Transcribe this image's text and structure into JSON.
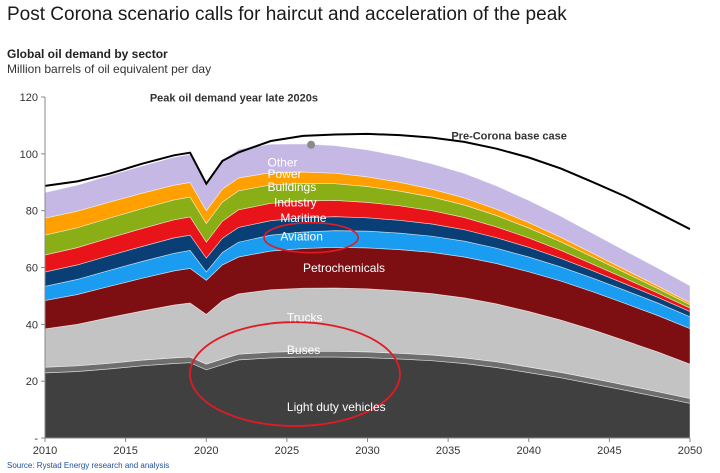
{
  "headline": "Post Corona scenario calls for haircut and acceleration of the peak",
  "source": "Source: Rystad Energy research and analysis",
  "chart_data": {
    "type": "area",
    "title": "Global oil demand by sector",
    "subtitle": "Million barrels of oil equivalent per day",
    "xlabel": "",
    "ylabel": "",
    "xlim": [
      2010,
      2050
    ],
    "ylim": [
      0,
      120
    ],
    "x_ticks": [
      2010,
      2015,
      2020,
      2025,
      2030,
      2035,
      2040,
      2045,
      2050
    ],
    "y_ticks": [
      0,
      20,
      40,
      60,
      80,
      100,
      120
    ],
    "y_tick_labels": [
      "-",
      "20",
      "40",
      "60",
      "80",
      "100",
      "120"
    ],
    "grid": false,
    "x": [
      2010,
      2012,
      2014,
      2016,
      2018,
      2019,
      2020,
      2021,
      2022,
      2024,
      2026,
      2028,
      2030,
      2032,
      2034,
      2036,
      2038,
      2040,
      2042,
      2044,
      2046,
      2048,
      2050
    ],
    "series": [
      {
        "name": "Light duty vehicles",
        "color": "#404040",
        "label_color": "#ffffff",
        "label_at": [
          2025,
          9.5
        ],
        "values": [
          22.9,
          23.4,
          24.3,
          25.4,
          26.2,
          26.5,
          24.0,
          25.8,
          27.5,
          28.2,
          28.5,
          28.5,
          28.3,
          27.8,
          27.2,
          26.2,
          24.8,
          23.0,
          21.2,
          19.0,
          16.8,
          14.5,
          12.2
        ]
      },
      {
        "name": "Buses",
        "color": "#6e6e6e",
        "label_color": "#ffffff",
        "label_at": [
          2025,
          29.5
        ],
        "values": [
          2.0,
          2.0,
          2.0,
          2.0,
          2.0,
          2.0,
          2.0,
          2.0,
          2.0,
          2.0,
          2.0,
          2.0,
          2.0,
          2.0,
          2.0,
          2.0,
          2.0,
          2.0,
          1.9,
          1.9,
          1.8,
          1.8,
          1.7
        ]
      },
      {
        "name": "Trucks",
        "color": "#c3c3c3",
        "label_color": "#ffffff",
        "label_at": [
          2025,
          41
        ]
      },
      {
        "name": "Petrochemicals",
        "color": "#7d0f12",
        "label_color": "#ffffff",
        "label_at": [
          2026,
          58.5
        ],
        "values": [
          10.0,
          10.5,
          11.0,
          11.5,
          12.0,
          12.2,
          12.0,
          12.6,
          13.0,
          13.6,
          14.0,
          14.3,
          14.4,
          14.5,
          14.5,
          14.4,
          14.2,
          14.0,
          13.7,
          13.4,
          13.1,
          12.8,
          12.5
        ]
      },
      {
        "name": "Aviation",
        "color": "#1a9cf0",
        "label_color": "#ffffff",
        "label_at": [
          2024.6,
          69.5
        ],
        "values": [
          5.0,
          5.3,
          5.6,
          5.9,
          6.2,
          6.3,
          3.0,
          4.4,
          5.2,
          5.6,
          5.8,
          5.9,
          5.9,
          5.8,
          5.7,
          5.6,
          5.4,
          5.2,
          5.0,
          4.8,
          4.6,
          4.4,
          4.2
        ]
      },
      {
        "name": "Maritime",
        "color": "#0a3f75",
        "label_color": "#ffffff",
        "label_at": [
          2024.6,
          76.0
        ],
        "values": [
          5.0,
          5.1,
          5.2,
          5.3,
          5.4,
          5.4,
          4.8,
          5.0,
          5.2,
          5.1,
          5.0,
          4.9,
          4.7,
          4.5,
          4.3,
          4.0,
          3.7,
          3.4,
          3.0,
          2.6,
          2.3,
          2.0,
          1.8
        ]
      },
      {
        "name": "Industry",
        "color": "#e8141a",
        "label_color": "#ffffff",
        "label_at": [
          2024.2,
          81.5
        ],
        "values": [
          6.0,
          6.1,
          6.2,
          6.3,
          6.4,
          6.4,
          5.6,
          6.0,
          6.2,
          6.1,
          5.9,
          5.7,
          5.4,
          5.1,
          4.7,
          4.3,
          3.8,
          3.3,
          2.8,
          2.3,
          1.9,
          1.5,
          1.2
        ]
      },
      {
        "name": "Buildings",
        "color": "#8aae16",
        "label_color": "#ffffff",
        "label_at": [
          2023.8,
          87.0
        ],
        "values": [
          7.0,
          7.0,
          7.0,
          7.0,
          7.0,
          7.0,
          6.6,
          6.7,
          6.7,
          6.5,
          6.2,
          5.9,
          5.6,
          5.2,
          4.8,
          4.4,
          4.0,
          3.5,
          3.0,
          2.5,
          2.0,
          1.6,
          1.2
        ]
      },
      {
        "name": "Power",
        "color": "#ffa000",
        "label_color": "#ffffff",
        "label_at": [
          2023.8,
          91.5
        ],
        "values": [
          6.0,
          5.8,
          5.6,
          5.4,
          5.2,
          5.1,
          4.5,
          4.6,
          4.5,
          4.3,
          4.0,
          3.7,
          3.4,
          3.1,
          2.8,
          2.5,
          2.2,
          1.9,
          1.6,
          1.3,
          1.1,
          0.9,
          0.7
        ]
      },
      {
        "name": "Other",
        "color": "#c5b8e4",
        "label_color": "#ffffff",
        "label_at": [
          2023.8,
          95.5
        ],
        "values": [
          9.0,
          9.2,
          9.4,
          9.6,
          9.8,
          9.9,
          9.8,
          10.0,
          10.1,
          10.0,
          9.9,
          9.7,
          9.5,
          9.2,
          8.9,
          8.6,
          8.2,
          7.8,
          7.4,
          7.0,
          6.6,
          6.3,
          6.0
        ]
      }
    ],
    "trucks_top": [
      38.4,
      40.0,
      42.4,
      44.7,
      46.8,
      47.5,
      43.5,
      48.3,
      50.7,
      52.2,
      52.7,
      52.8,
      52.5,
      51.8,
      50.8,
      49.3,
      47.2,
      44.5,
      41.5,
      38.0,
      34.2,
      30.3,
      26.0
    ],
    "pre_corona_base_case": {
      "name": "Pre-Corona base case",
      "x": [
        2010,
        2012,
        2014,
        2016,
        2018,
        2019,
        2020,
        2021,
        2022,
        2024,
        2026,
        2028,
        2030,
        2032,
        2034,
        2036,
        2038,
        2040,
        2042,
        2044,
        2046,
        2048,
        2050
      ],
      "values": [
        88.7,
        90.3,
        93.0,
        96.5,
        99.5,
        100.4,
        89.5,
        97.5,
        100.5,
        104.5,
        106.3,
        106.8,
        107.0,
        106.6,
        105.7,
        104.2,
        101.8,
        98.7,
        94.8,
        90.0,
        85.0,
        79.3,
        73.5
      ]
    },
    "annotations": [
      {
        "text": "Peak oil demand year late 2020s",
        "marker_at": [
          2026.5,
          103.2
        ],
        "text_at": [
          2016.5,
          118.5
        ]
      },
      {
        "text": "Pre-Corona base case",
        "text_at": [
          2035.2,
          105.0
        ]
      }
    ],
    "highlight_ellipses": [
      "Maritime / Aviation",
      "Trucks / Buses / Light duty vehicles"
    ]
  }
}
